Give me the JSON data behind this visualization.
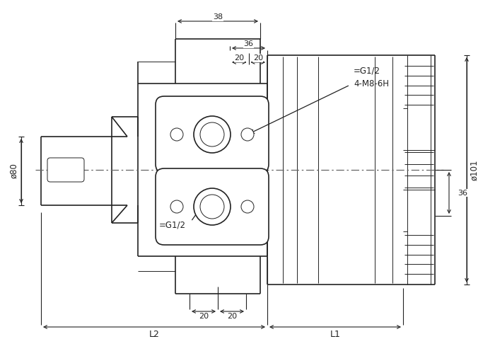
{
  "bg_color": "#ffffff",
  "line_color": "#222222",
  "dim_color": "#222222",
  "center_color": "#666666",
  "annotations": {
    "dim_38": "38",
    "dim_36_top": "36",
    "dim_20_tl": "20",
    "dim_20_tr": "20",
    "dim_20_bl": "20",
    "dim_20_br": "20",
    "dim_36_right": "36",
    "label_G12_top": "=G1/2",
    "label_4M8": "4-M8-6H",
    "label_G12_bot": "=G1/2",
    "label_phi80": "ø80",
    "label_phi101": "ø101",
    "label_L1": "L1",
    "label_L2": "L2"
  }
}
